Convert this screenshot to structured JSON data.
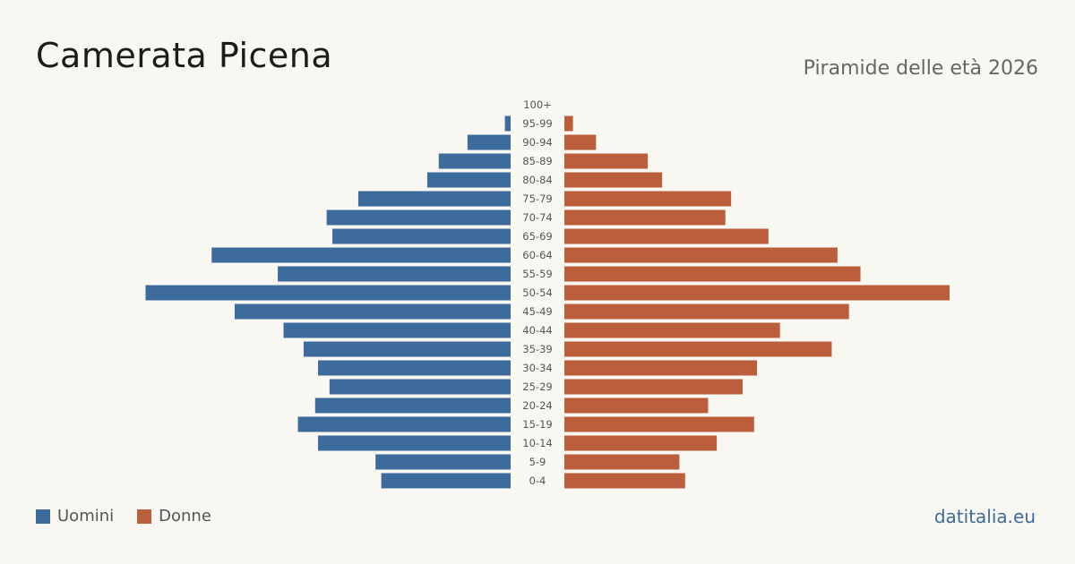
{
  "header": {
    "title": "Camerata Picena",
    "subtitle": "Piramide delle età 2026"
  },
  "legend": {
    "men_label": "Uomini",
    "women_label": "Donne"
  },
  "footer": {
    "source": "datitalia.eu"
  },
  "colors": {
    "men": "#3d6b9c",
    "women": "#bb5e3c",
    "background": "#f9f7f2"
  },
  "chart_data": {
    "type": "bar",
    "orientation": "horizontal-pyramid",
    "categories": [
      "100+",
      "95-99",
      "90-94",
      "85-89",
      "80-84",
      "75-79",
      "70-74",
      "65-69",
      "60-64",
      "55-59",
      "50-54",
      "45-49",
      "40-44",
      "35-39",
      "30-34",
      "25-29",
      "20-24",
      "15-19",
      "10-14",
      "5-9",
      "0-4"
    ],
    "series": [
      {
        "name": "Uomini",
        "values": [
          0,
          2,
          15,
          25,
          29,
          53,
          64,
          62,
          104,
          81,
          127,
          96,
          79,
          72,
          67,
          63,
          68,
          74,
          67,
          47,
          45
        ]
      },
      {
        "name": "Donne",
        "values": [
          0,
          3,
          11,
          29,
          34,
          58,
          56,
          71,
          95,
          103,
          134,
          99,
          75,
          93,
          67,
          62,
          50,
          66,
          53,
          40,
          42
        ]
      }
    ],
    "title": "Camerata Picena",
    "subtitle": "Piramide delle età 2026",
    "xlabel": "",
    "ylabel": "",
    "grid": false,
    "legend": "bottom-left"
  }
}
